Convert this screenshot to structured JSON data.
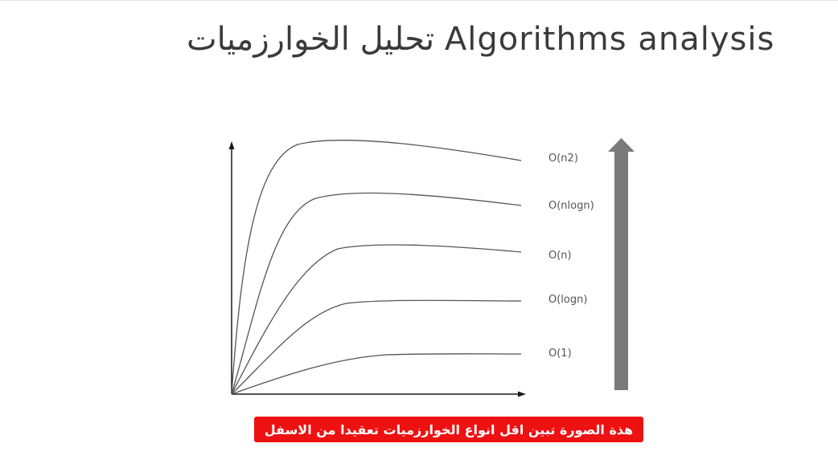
{
  "slide": {
    "title": "تحليل الخوارزميات Algorithms analysis",
    "caption": "هذة الصورة تبين اقل انواع الخوارزميات تعقيدا من الاسفل"
  },
  "diagram": {
    "curve_labels": [
      "O(n2)",
      "O(nlogn)",
      "O(n)",
      "O(logn)",
      "O(1)"
    ],
    "colors": {
      "curves": "#555555",
      "axes": "#1a1a1a",
      "arrow": "#7a7a7a",
      "caption_background": "#ee1111",
      "caption_text": "#ffffff"
    }
  }
}
